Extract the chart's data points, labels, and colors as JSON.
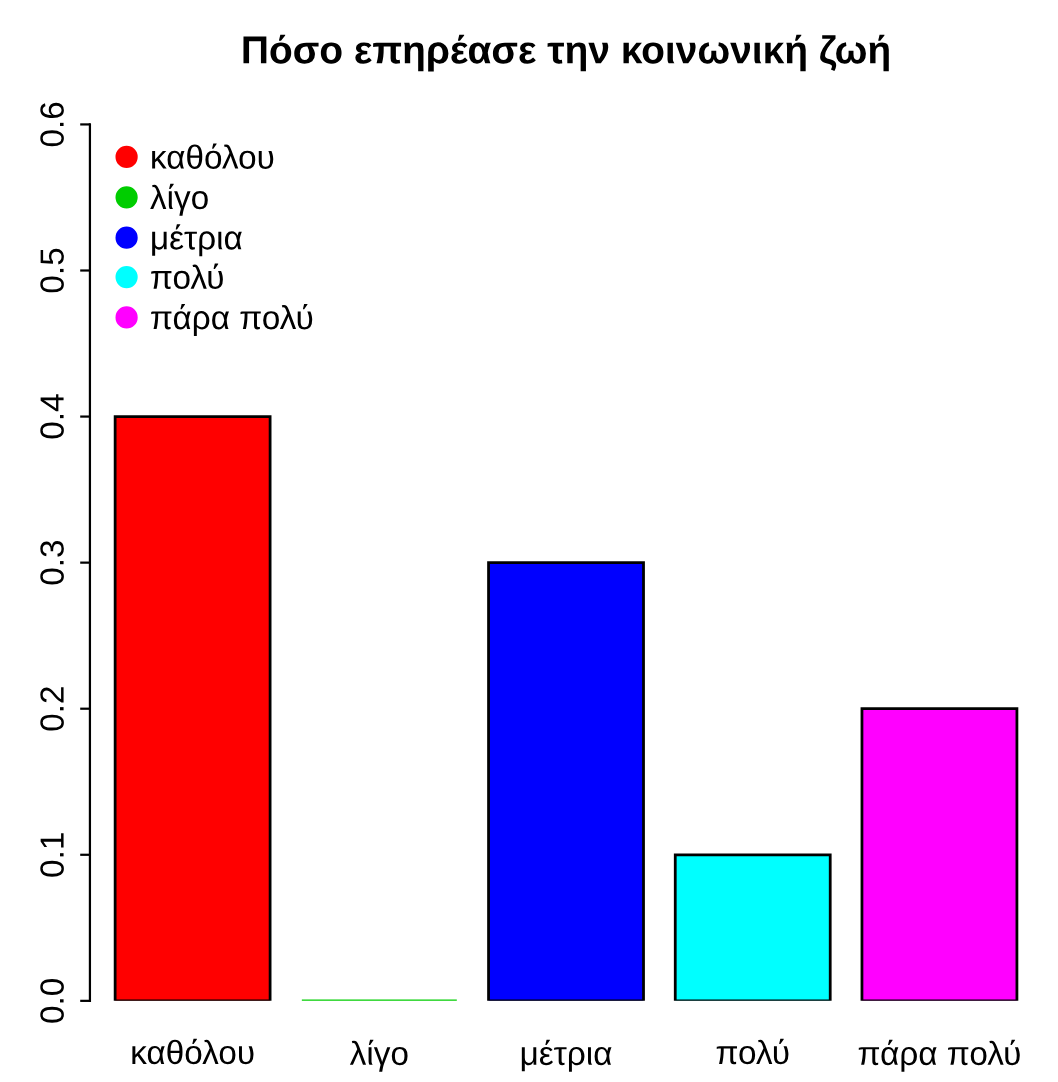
{
  "chart_data": {
    "type": "bar",
    "title": "Πόσο επηρέασε την κοινωνική ζωή",
    "categories": [
      "καθόλου",
      "λίγο",
      "μέτρια",
      "πολύ",
      "πάρα πολύ"
    ],
    "series": [
      {
        "name": "καθόλου",
        "color": "#ff0000",
        "values": [
          0.4,
          null,
          null,
          null,
          null
        ]
      },
      {
        "name": "λίγο",
        "color": "#00cd00",
        "values": [
          null,
          0,
          null,
          null,
          null
        ]
      },
      {
        "name": "μέτρια",
        "color": "#0000ff",
        "values": [
          null,
          null,
          0.3,
          null,
          null
        ]
      },
      {
        "name": "πολύ",
        "color": "#00ffff",
        "values": [
          null,
          null,
          null,
          0.1,
          null
        ]
      },
      {
        "name": "πάρα πολύ",
        "color": "#ff00ff",
        "values": [
          null,
          null,
          null,
          null,
          0.2
        ]
      }
    ],
    "ylim": [
      0,
      0.6
    ],
    "yticks": [
      "0.0",
      0.1,
      0.2,
      0.3,
      0.4,
      0.5,
      0.6
    ],
    "grid": false,
    "legend": "top left",
    "marker": "circle"
  }
}
